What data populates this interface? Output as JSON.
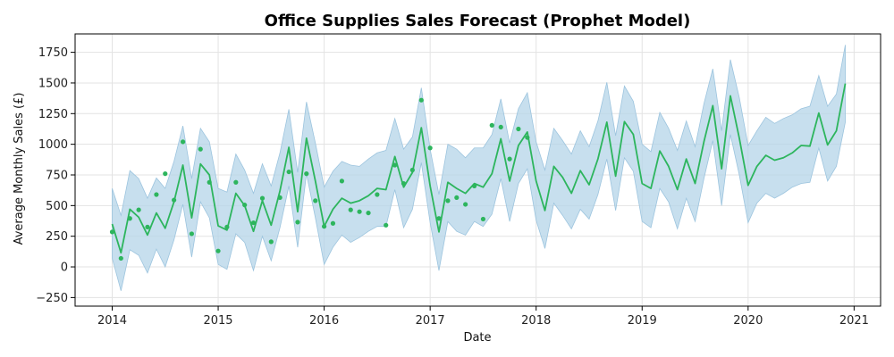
{
  "chart_data": {
    "type": "line",
    "title": "Office Supplies Sales Forecast (Prophet Model)",
    "xlabel": "Date",
    "ylabel": "Average Monthly Sales (£)",
    "x_range": [
      2013.65,
      2021.25
    ],
    "ylim": [
      -320,
      1900
    ],
    "x_ticks": [
      2014,
      2015,
      2016,
      2017,
      2018,
      2019,
      2020,
      2021
    ],
    "x_tick_labels": [
      "2014",
      "2015",
      "2016",
      "2017",
      "2018",
      "2019",
      "2020",
      "2021"
    ],
    "y_ticks": [
      -250,
      0,
      250,
      500,
      750,
      1000,
      1250,
      1500,
      1750
    ],
    "y_tick_labels": [
      "−250",
      "0",
      "250",
      "500",
      "750",
      "1000",
      "1250",
      "1500",
      "1750"
    ],
    "grid": true,
    "colors": {
      "forecast_line": "#2db55d",
      "actual_points": "#2db55d",
      "interval_fill": "#b4d4e8",
      "interval_edge": "#9cc4de"
    },
    "forecast": {
      "x": [
        2014.0,
        2014.083,
        2014.167,
        2014.25,
        2014.333,
        2014.417,
        2014.5,
        2014.583,
        2014.667,
        2014.75,
        2014.833,
        2014.917,
        2015.0,
        2015.083,
        2015.167,
        2015.25,
        2015.333,
        2015.417,
        2015.5,
        2015.583,
        2015.667,
        2015.75,
        2015.833,
        2015.917,
        2016.0,
        2016.083,
        2016.167,
        2016.25,
        2016.333,
        2016.417,
        2016.5,
        2016.583,
        2016.667,
        2016.75,
        2016.833,
        2016.917,
        2017.0,
        2017.083,
        2017.167,
        2017.25,
        2017.333,
        2017.417,
        2017.5,
        2017.583,
        2017.667,
        2017.75,
        2017.833,
        2017.917,
        2018.0,
        2018.083,
        2018.167,
        2018.25,
        2018.333,
        2018.417,
        2018.5,
        2018.583,
        2018.667,
        2018.75,
        2018.833,
        2018.917,
        2019.0,
        2019.083,
        2019.167,
        2019.25,
        2019.333,
        2019.417,
        2019.5,
        2019.583,
        2019.667,
        2019.75,
        2019.833,
        2019.917,
        2020.0,
        2020.083,
        2020.167,
        2020.25,
        2020.333,
        2020.417,
        2020.5,
        2020.583,
        2020.667,
        2020.75,
        2020.833,
        2020.917
      ],
      "yhat": [
        350,
        115,
        470,
        405,
        260,
        440,
        315,
        530,
        830,
        400,
        840,
        750,
        335,
        300,
        600,
        500,
        290,
        540,
        340,
        620,
        975,
        450,
        1050,
        700,
        330,
        470,
        560,
        520,
        540,
        580,
        640,
        630,
        900,
        650,
        770,
        1135,
        660,
        285,
        690,
        640,
        600,
        680,
        650,
        760,
        1045,
        700,
        990,
        1100,
        700,
        460,
        820,
        730,
        600,
        785,
        670,
        880,
        1180,
        740,
        1185,
        1080,
        680,
        640,
        945,
        820,
        630,
        880,
        680,
        1020,
        1315,
        800,
        1395,
        1050,
        665,
        820,
        910,
        870,
        890,
        930,
        990,
        985,
        1255,
        995,
        1110,
        1495
      ],
      "lower": [
        70,
        -195,
        140,
        95,
        -50,
        145,
        0,
        220,
        510,
        80,
        530,
        400,
        20,
        -20,
        270,
        200,
        -30,
        250,
        50,
        320,
        660,
        160,
        760,
        400,
        20,
        160,
        260,
        200,
        240,
        290,
        330,
        330,
        630,
        320,
        470,
        850,
        360,
        -30,
        370,
        290,
        260,
        370,
        330,
        430,
        720,
        370,
        680,
        800,
        380,
        150,
        520,
        420,
        310,
        470,
        390,
        590,
        880,
        460,
        890,
        780,
        370,
        320,
        640,
        530,
        310,
        560,
        370,
        720,
        1030,
        500,
        1080,
        750,
        360,
        520,
        600,
        560,
        600,
        650,
        680,
        690,
        970,
        700,
        820,
        1180
      ],
      "upper": [
        640,
        420,
        785,
        720,
        560,
        725,
        640,
        860,
        1150,
        720,
        1130,
        1020,
        640,
        610,
        920,
        790,
        600,
        840,
        660,
        930,
        1285,
        770,
        1345,
        1010,
        650,
        780,
        860,
        830,
        820,
        880,
        930,
        950,
        1210,
        960,
        1060,
        1460,
        960,
        590,
        1000,
        960,
        890,
        970,
        970,
        1080,
        1370,
        1010,
        1290,
        1420,
        1020,
        790,
        1130,
        1030,
        920,
        1110,
        980,
        1190,
        1505,
        1070,
        1475,
        1350,
        1000,
        940,
        1260,
        1130,
        950,
        1190,
        980,
        1330,
        1615,
        1110,
        1690,
        1380,
        990,
        1110,
        1220,
        1170,
        1210,
        1240,
        1290,
        1310,
        1560,
        1310,
        1410,
        1810
      ]
    },
    "actual": {
      "x": [
        2014.0,
        2014.083,
        2014.167,
        2014.25,
        2014.333,
        2014.417,
        2014.5,
        2014.583,
        2014.667,
        2014.75,
        2014.833,
        2014.917,
        2015.0,
        2015.083,
        2015.167,
        2015.25,
        2015.333,
        2015.417,
        2015.5,
        2015.583,
        2015.667,
        2015.75,
        2015.833,
        2015.917,
        2016.0,
        2016.083,
        2016.167,
        2016.25,
        2016.333,
        2016.417,
        2016.5,
        2016.583,
        2016.667,
        2016.75,
        2016.833,
        2016.917,
        2017.0,
        2017.083,
        2017.167,
        2017.25,
        2017.333,
        2017.417,
        2017.5,
        2017.583,
        2017.667,
        2017.75,
        2017.833,
        2017.917
      ],
      "y": [
        285,
        70,
        395,
        465,
        325,
        590,
        760,
        545,
        1020,
        270,
        960,
        690,
        130,
        325,
        690,
        505,
        360,
        560,
        205,
        565,
        775,
        365,
        760,
        540,
        330,
        355,
        700,
        465,
        450,
        440,
        590,
        340,
        830,
        680,
        790,
        1360,
        970,
        395,
        540,
        565,
        510,
        660,
        390,
        1155,
        1140,
        880,
        1125,
        1055
      ]
    }
  }
}
